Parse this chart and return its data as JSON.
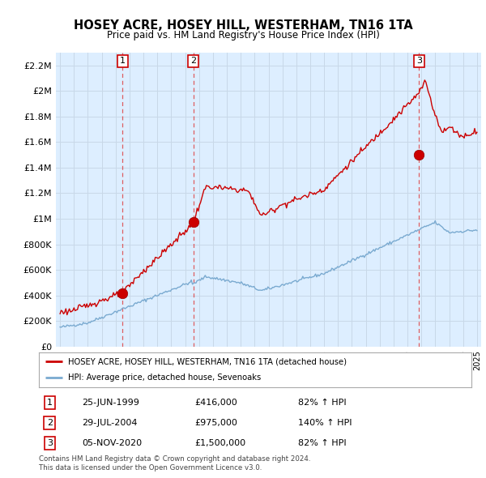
{
  "title": "HOSEY ACRE, HOSEY HILL, WESTERHAM, TN16 1TA",
  "subtitle": "Price paid vs. HM Land Registry's House Price Index (HPI)",
  "property_label": "HOSEY ACRE, HOSEY HILL, WESTERHAM, TN16 1TA (detached house)",
  "hpi_label": "HPI: Average price, detached house, Sevenoaks",
  "transactions": [
    {
      "num": 1,
      "date": "25-JUN-1999",
      "price": 416000,
      "price_str": "£416,000",
      "pct": "82%",
      "direction": "↑"
    },
    {
      "num": 2,
      "date": "29-JUL-2004",
      "price": 975000,
      "price_str": "£975,000",
      "pct": "140%",
      "direction": "↑"
    },
    {
      "num": 3,
      "date": "05-NOV-2020",
      "price": 1500000,
      "price_str": "£1,500,000",
      "pct": "82%",
      "direction": "↑"
    }
  ],
  "footer1": "Contains HM Land Registry data © Crown copyright and database right 2024.",
  "footer2": "This data is licensed under the Open Government Licence v3.0.",
  "ylim": [
    0,
    2300000
  ],
  "yticks": [
    0,
    200000,
    400000,
    600000,
    800000,
    1000000,
    1200000,
    1400000,
    1600000,
    1800000,
    2000000,
    2200000
  ],
  "ytick_labels": [
    "£0",
    "£200K",
    "£400K",
    "£600K",
    "£800K",
    "£1M",
    "£1.2M",
    "£1.4M",
    "£1.6M",
    "£1.8M",
    "£2M",
    "£2.2M"
  ],
  "property_color": "#cc0000",
  "hpi_color": "#7aaad0",
  "vline_color": "#dd4444",
  "background_color": "#ffffff",
  "grid_color": "#c8d8e8",
  "chart_bg": "#ddeeff",
  "box_facecolor": "#ffffff",
  "box_edgecolor": "#cc0000",
  "box_textcolor": "#000000",
  "marker_color": "#cc0000"
}
